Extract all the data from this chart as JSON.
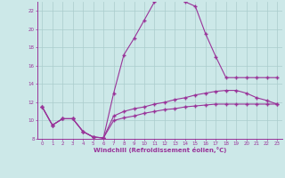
{
  "xlabel": "Windchill (Refroidissement éolien,°C)",
  "background_color": "#cce8e8",
  "grid_color": "#aacccc",
  "line_color": "#993399",
  "xlim": [
    -0.5,
    23.5
  ],
  "ylim": [
    8,
    23
  ],
  "xticks": [
    0,
    1,
    2,
    3,
    4,
    5,
    6,
    7,
    8,
    9,
    10,
    11,
    12,
    13,
    14,
    15,
    16,
    17,
    18,
    19,
    20,
    21,
    22,
    23
  ],
  "yticks": [
    8,
    10,
    12,
    14,
    16,
    18,
    20,
    22
  ],
  "line1_x": [
    0,
    1,
    2,
    3,
    4,
    5,
    6,
    7,
    8,
    9,
    10,
    11,
    12,
    13,
    14,
    15,
    16,
    17,
    18,
    19,
    20,
    21,
    22,
    23
  ],
  "line1_y": [
    11.5,
    9.5,
    10.2,
    10.2,
    8.8,
    8.2,
    8.1,
    13.0,
    17.2,
    19.0,
    21.0,
    23.0,
    23.3,
    23.3,
    23.0,
    22.5,
    19.5,
    17.0,
    14.7,
    14.7,
    14.7,
    14.7,
    14.7,
    14.7
  ],
  "line2_x": [
    0,
    1,
    2,
    3,
    4,
    5,
    6,
    7,
    8,
    9,
    10,
    11,
    12,
    13,
    14,
    15,
    16,
    17,
    18,
    19,
    20,
    21,
    22,
    23
  ],
  "line2_y": [
    11.5,
    9.5,
    10.2,
    10.2,
    8.8,
    8.2,
    8.1,
    10.5,
    11.0,
    11.3,
    11.5,
    11.8,
    12.0,
    12.3,
    12.5,
    12.8,
    13.0,
    13.2,
    13.3,
    13.3,
    13.0,
    12.5,
    12.2,
    11.8
  ],
  "line3_x": [
    0,
    1,
    2,
    3,
    4,
    5,
    6,
    7,
    8,
    9,
    10,
    11,
    12,
    13,
    14,
    15,
    16,
    17,
    18,
    19,
    20,
    21,
    22,
    23
  ],
  "line3_y": [
    11.5,
    9.5,
    10.2,
    10.2,
    8.8,
    8.2,
    8.1,
    10.0,
    10.3,
    10.5,
    10.8,
    11.0,
    11.2,
    11.3,
    11.5,
    11.6,
    11.7,
    11.8,
    11.8,
    11.8,
    11.8,
    11.8,
    11.8,
    11.8
  ]
}
